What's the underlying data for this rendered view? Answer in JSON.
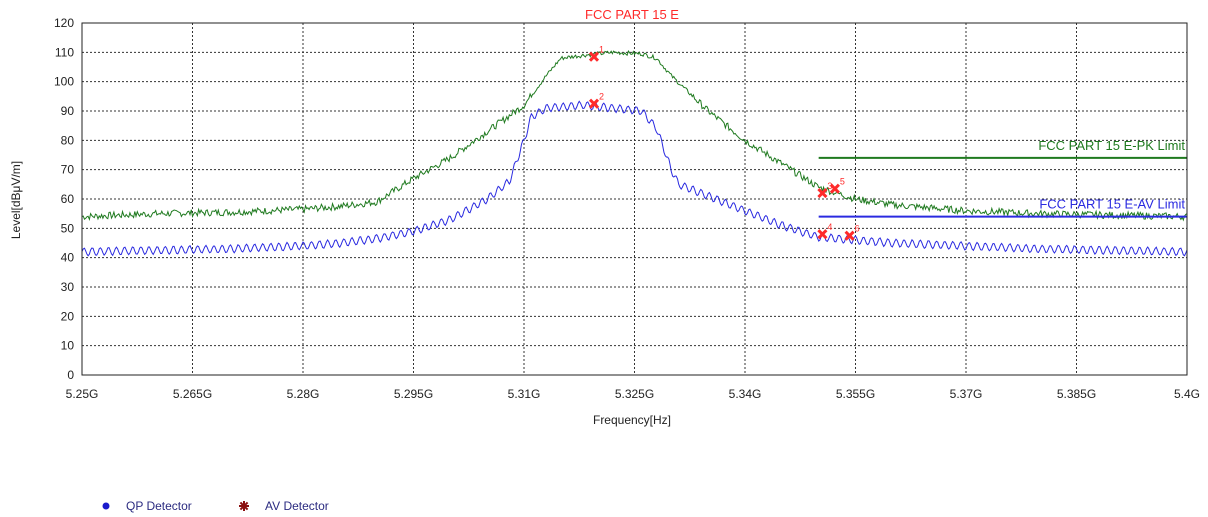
{
  "colors": {
    "peak_trace": "#1f7a1f",
    "avg_trace": "#2a2ae0",
    "pk_limit": "#1f7a1f",
    "av_limit": "#2a2ae0",
    "markers": "#ff2a2a",
    "title": "#ff2a2a",
    "legend_qp": "#1a1acc",
    "legend_av": "#8b1010"
  },
  "chart_data": {
    "type": "line",
    "title": "FCC PART 15 E",
    "xlabel": "Frequency[Hz]",
    "ylabel": "Level[dBμV/m]",
    "xlim": [
      5.25,
      5.4
    ],
    "ylim": [
      0,
      120
    ],
    "grid": true,
    "x_tick_labels": [
      "5.25G",
      "5.265G",
      "5.28G",
      "5.295G",
      "5.31G",
      "5.325G",
      "5.34G",
      "5.355G",
      "5.37G",
      "5.385G",
      "5.4G"
    ],
    "y_tick_labels": [
      "0",
      "10",
      "20",
      "30",
      "40",
      "50",
      "60",
      "70",
      "80",
      "90",
      "100",
      "110",
      "120"
    ],
    "series": [
      {
        "x": [
          5.25,
          5.26,
          5.27,
          5.28,
          5.285,
          5.29,
          5.295,
          5.3,
          5.305,
          5.31,
          5.313,
          5.315,
          5.318,
          5.322,
          5.326,
          5.328,
          5.33,
          5.335,
          5.34,
          5.345,
          5.35,
          5.355,
          5.36,
          5.37,
          5.38,
          5.39,
          5.4
        ],
        "values": [
          54,
          55,
          55.5,
          56.5,
          57.5,
          59,
          67,
          74,
          83,
          92,
          102,
          108,
          109,
          110,
          109.5,
          108,
          102,
          90,
          80,
          72,
          64,
          60,
          58,
          56,
          55,
          54.5,
          54
        ]
      },
      {
        "x": [
          5.25,
          5.26,
          5.27,
          5.28,
          5.285,
          5.29,
          5.295,
          5.3,
          5.305,
          5.308,
          5.31,
          5.311,
          5.313,
          5.318,
          5.322,
          5.326,
          5.328,
          5.33,
          5.331,
          5.335,
          5.34,
          5.345,
          5.35,
          5.355,
          5.36,
          5.37,
          5.38,
          5.39,
          5.4
        ],
        "values": [
          42,
          42.5,
          43,
          44,
          45,
          46.5,
          49,
          53,
          60,
          66,
          80,
          88,
          91,
          92,
          91,
          90,
          84,
          70,
          65,
          61,
          56,
          51,
          47,
          46,
          45,
          44,
          43,
          42.5,
          42
        ]
      }
    ],
    "limits": [
      {
        "name": "FCC PART 15 E-PK Limit",
        "value": 74,
        "x_start": 5.35,
        "x_end": 5.4
      },
      {
        "name": "FCC PART 15 E-AV Limit",
        "value": 54,
        "x_start": 5.35,
        "x_end": 5.4
      }
    ],
    "markers": [
      {
        "label": "1",
        "x": 5.3195,
        "y": 108.5
      },
      {
        "label": "2",
        "x": 5.3195,
        "y": 92.5
      },
      {
        "label": "3",
        "x": 5.3505,
        "y": 62
      },
      {
        "label": "4",
        "x": 5.3505,
        "y": 48
      },
      {
        "label": "5",
        "x": 5.3522,
        "y": 63.5
      },
      {
        "label": "6",
        "x": 5.3542,
        "y": 47.5
      }
    ]
  },
  "legend": {
    "items": [
      {
        "label": "QP Detector"
      },
      {
        "label": "AV Detector"
      }
    ]
  }
}
